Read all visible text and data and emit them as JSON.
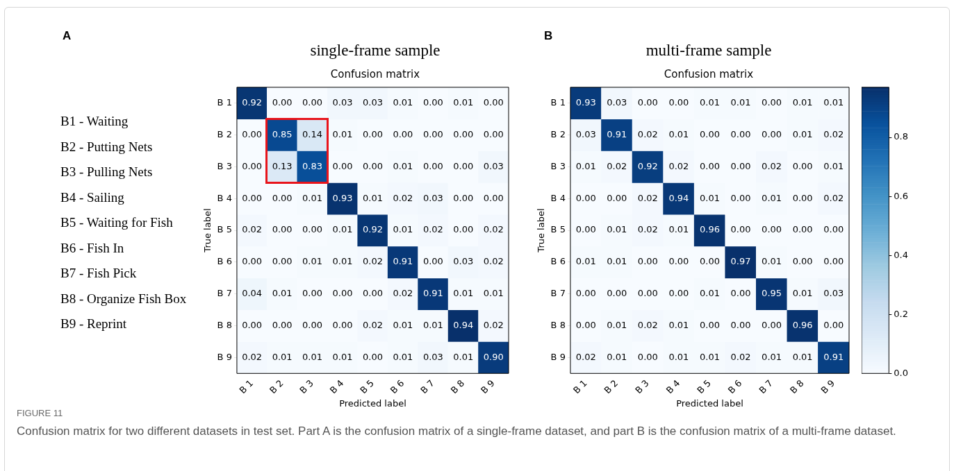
{
  "chart_data": [
    {
      "type": "heatmap",
      "title": "single-frame sample",
      "subtitle": "Confusion matrix",
      "xlabel": "Predicted label",
      "ylabel": "True label",
      "annotations": [
        "A",
        "B1 - Waiting",
        "B2 - Putting Nets",
        "B3 - Pulling Nets",
        "B4 - Sailing",
        "B5 - Waiting for Fish",
        "B6 - Fish In",
        "B7 - Fish Pick",
        "B8 - Organize Fish Box",
        "B9 - Reprint"
      ],
      "categories": [
        "B 1",
        "B 2",
        "B 3",
        "B 4",
        "B 5",
        "B 6",
        "B 7",
        "B 8",
        "B 9"
      ],
      "y_categories": [
        "B 1",
        "B 2",
        "B 3",
        "B 4",
        "B 5",
        "B 6",
        "B 7",
        "B 8",
        "B 9"
      ],
      "cells": [
        [
          0.92,
          0.0,
          0.0,
          0.03,
          0.03,
          0.01,
          0.0,
          0.01,
          0.0
        ],
        [
          0.0,
          0.85,
          0.14,
          0.01,
          0.0,
          0.0,
          0.0,
          0.0,
          0.0
        ],
        [
          0.0,
          0.13,
          0.83,
          0.0,
          0.0,
          0.01,
          0.0,
          0.0,
          0.03
        ],
        [
          0.0,
          0.0,
          0.01,
          0.93,
          0.01,
          0.02,
          0.03,
          0.0,
          0.0
        ],
        [
          0.02,
          0.0,
          0.0,
          0.01,
          0.92,
          0.01,
          0.02,
          0.0,
          0.02
        ],
        [
          0.0,
          0.0,
          0.01,
          0.01,
          0.02,
          0.91,
          0.0,
          0.03,
          0.02
        ],
        [
          0.04,
          0.01,
          0.0,
          0.0,
          0.0,
          0.02,
          0.91,
          0.01,
          0.01
        ],
        [
          0.0,
          0.0,
          0.0,
          0.0,
          0.02,
          0.01,
          0.01,
          0.94,
          0.02
        ],
        [
          0.02,
          0.01,
          0.01,
          0.01,
          0.0,
          0.01,
          0.03,
          0.01,
          0.9
        ]
      ],
      "cell_labels": [
        [
          "0.92",
          "0.00",
          "0.00",
          "0.03",
          "0.03",
          "0.01",
          "0.00",
          "0.01",
          "0.00"
        ],
        [
          "0.00",
          "0.85",
          "0.14",
          "0.01",
          "0.00",
          "0.00",
          "0.00",
          "0.00",
          "0.00"
        ],
        [
          "0.00",
          "0.13",
          "0.83",
          "0.00",
          "0.00",
          "0.01",
          "0.00",
          "0.00",
          "0.03"
        ],
        [
          "0.00",
          "0.00",
          "0.01",
          "0.93",
          "0.01",
          "0.02",
          "0.03",
          "0.00",
          "0.00"
        ],
        [
          "0.02",
          "0.00",
          "0.00",
          "0.01",
          "0.92",
          "0.01",
          "0.02",
          "0.00",
          "0.02"
        ],
        [
          "0.00",
          "0.00",
          "0.01",
          "0.01",
          "0.02",
          "0.91",
          "0.00",
          "0.03",
          "0.02"
        ],
        [
          "0.04",
          "0.01",
          "0.00",
          "0.00",
          "0.00",
          "0.02",
          "0.91",
          "0.01",
          "0.01"
        ],
        [
          "0.00",
          "0.00",
          "0.00",
          "0.00",
          "0.02",
          "0.01",
          "0.01",
          "0.94",
          "0.02"
        ],
        [
          "0.02",
          "0.01",
          "0.01",
          "0.01",
          "0.00",
          "0.01",
          "0.03",
          "0.01",
          "0.90"
        ]
      ]
    },
    {
      "type": "heatmap",
      "title": "multi-frame sample",
      "subtitle": "Confusion matrix",
      "xlabel": "Predicted label",
      "ylabel": "True label",
      "annotations": [
        "B"
      ],
      "categories": [
        "B 1",
        "B 2",
        "B 3",
        "B 4",
        "B 5",
        "B 6",
        "B 7",
        "B 8",
        "B 9"
      ],
      "y_categories": [
        "B 1",
        "B 2",
        "B 3",
        "B 4",
        "B 5",
        "B 6",
        "B 7",
        "B 8",
        "B 9"
      ],
      "cells": [
        [
          0.93,
          0.03,
          0.0,
          0.0,
          0.01,
          0.01,
          0.0,
          0.01,
          0.01
        ],
        [
          0.03,
          0.91,
          0.02,
          0.01,
          0.0,
          0.0,
          0.0,
          0.01,
          0.02
        ],
        [
          0.01,
          0.02,
          0.92,
          0.02,
          0.0,
          0.0,
          0.02,
          0.0,
          0.01
        ],
        [
          0.0,
          0.0,
          0.02,
          0.94,
          0.01,
          0.0,
          0.01,
          0.0,
          0.02
        ],
        [
          0.0,
          0.01,
          0.02,
          0.01,
          0.96,
          0.0,
          0.0,
          0.0,
          0.0
        ],
        [
          0.01,
          0.01,
          0.0,
          0.0,
          0.0,
          0.97,
          0.01,
          0.0,
          0.0
        ],
        [
          0.0,
          0.0,
          0.0,
          0.0,
          0.01,
          0.0,
          0.95,
          0.01,
          0.03
        ],
        [
          0.0,
          0.01,
          0.02,
          0.01,
          0.0,
          0.0,
          0.0,
          0.96,
          0.0
        ],
        [
          0.02,
          0.01,
          0.0,
          0.01,
          0.01,
          0.02,
          0.01,
          0.01,
          0.91
        ]
      ],
      "cell_labels": [
        [
          "0.93",
          "0.03",
          "0.00",
          "0.00",
          "0.01",
          "0.01",
          "0.00",
          "0.01",
          "0.01"
        ],
        [
          "0.03",
          "0.91",
          "0.02",
          "0.01",
          "0.00",
          "0.00",
          "0.00",
          "0.01",
          "0.02"
        ],
        [
          "0.01",
          "0.02",
          "0.92",
          "0.02",
          "0.00",
          "0.00",
          "0.02",
          "0.00",
          "0.01"
        ],
        [
          "0.00",
          "0.00",
          "0.02",
          "0.94",
          "0.01",
          "0.00",
          "0.01",
          "0.00",
          "0.02"
        ],
        [
          "0.00",
          "0.01",
          "0.02",
          "0.01",
          "0.96",
          "0.00",
          "0.00",
          "0.00",
          "0.00"
        ],
        [
          "0.01",
          "0.01",
          "0.00",
          "0.00",
          "0.00",
          "0.97",
          "0.01",
          "0.00",
          "0.00"
        ],
        [
          "0.00",
          "0.00",
          "0.00",
          "0.00",
          "0.01",
          "0.00",
          "0.95",
          "0.01",
          "0.03"
        ],
        [
          "0.00",
          "0.01",
          "0.02",
          "0.01",
          "0.00",
          "0.00",
          "0.00",
          "0.96",
          "0.00"
        ],
        [
          "0.02",
          "0.01",
          "0.00",
          "0.01",
          "0.01",
          "0.02",
          "0.01",
          "0.01",
          "0.91"
        ]
      ],
      "clim": [
        0,
        0.97
      ],
      "cticks": [
        {
          "value": 0,
          "label": "0.0"
        },
        0.2,
        0.4,
        0.6,
        0.8
      ]
    },
    {
      "type": "other",
      "title": "FIGURE 11",
      "annotations": [
        "Confusion matrix for two different datasets in test set. Part A is the confusion matrix of a single-frame dataset, and part B is the confusion matrix of a multi-frame dataset."
      ]
    }
  ]
}
